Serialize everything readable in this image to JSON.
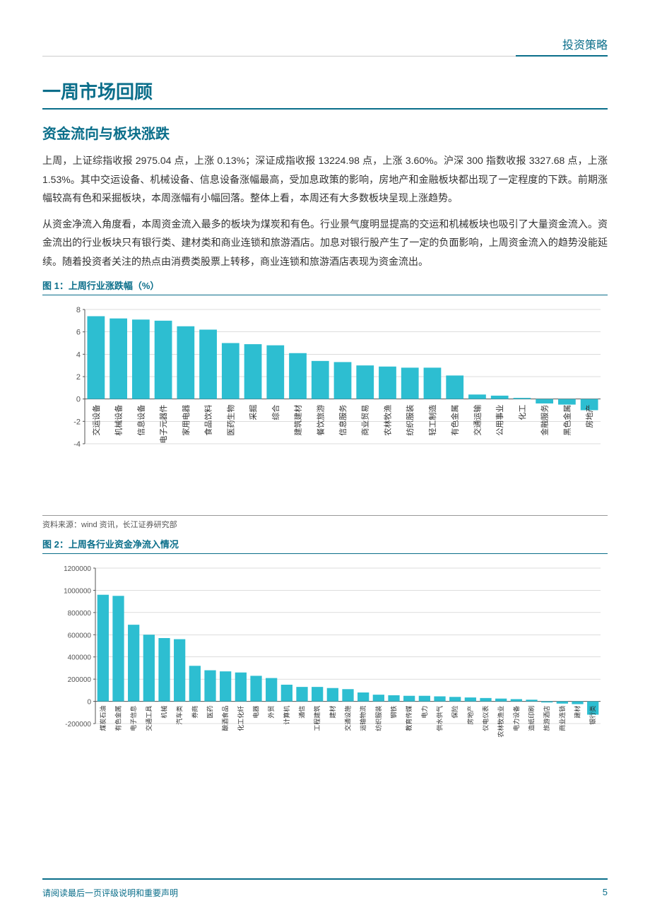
{
  "header": {
    "category": "投资策略"
  },
  "section": {
    "title": "一周市场回顾",
    "subtitle": "资金流向与板块涨跌",
    "para1": "上周，上证综指收报 2975.04 点，上涨 0.13%；深证成指收报 13224.98 点，上涨 3.60%。沪深 300 指数收报 3327.68 点，上涨 1.53%。其中交运设备、机械设备、信息设备涨幅最高，受加息政策的影响，房地产和金融板块都出现了一定程度的下跌。前期涨幅较高有色和采掘板块，本周涨幅有小幅回落。整体上看，本周还有大多数板块呈现上涨趋势。",
    "para2": "从资金净流入角度看，本周资金流入最多的板块为煤炭和有色。行业景气度明显提高的交运和机械板块也吸引了大量资金流入。资金流出的行业板块只有银行类、建材类和商业连锁和旅游酒店。加息对银行股产生了一定的负面影响，上周资金流入的趋势没能延续。随着投资者关注的热点由消费类股票上转移，商业连锁和旅游酒店表现为资金流出。"
  },
  "chart1": {
    "title": "图 1：上周行业涨跌幅（%）",
    "type": "bar",
    "ylim": [
      -4,
      8
    ],
    "yticks": [
      -4,
      -2,
      0,
      2,
      4,
      6,
      8
    ],
    "categories": [
      "交运设备",
      "机械设备",
      "信息设备",
      "电子元器件",
      "家用电器",
      "食品饮料",
      "医药生物",
      "采掘",
      "综合",
      "建筑建材",
      "餐饮旅游",
      "信息服务",
      "商业贸易",
      "农林牧渔",
      "纺织服装",
      "轻工制造",
      "有色金属",
      "交通运输",
      "公用事业",
      "化工",
      "金融服务",
      "黑色金属",
      "房地产"
    ],
    "values": [
      7.4,
      7.2,
      7.1,
      7.0,
      6.5,
      6.2,
      5.0,
      4.9,
      4.8,
      4.1,
      3.4,
      3.3,
      3.0,
      2.9,
      2.8,
      2.8,
      2.1,
      0.4,
      0.3,
      0.1,
      -0.4,
      -0.5,
      -1.0
    ],
    "bar_color": "#2dbed1",
    "grid_color": "#bbbbbb",
    "axis_color": "#555555",
    "source": "资料来源：wind 资讯，长江证券研究部"
  },
  "chart2": {
    "title": "图 2：上周各行业资金净流入情况",
    "type": "bar",
    "ylim": [
      -200000,
      1200000
    ],
    "yticks": [
      -200000,
      0,
      200000,
      400000,
      600000,
      800000,
      1000000,
      1200000
    ],
    "categories": [
      "煤炭石油",
      "有色金属",
      "电子信息",
      "交通工具",
      "机械",
      "汽车类",
      "券商",
      "医药",
      "酿酒食品",
      "化工化纤",
      "电器",
      "外贸",
      "计算机",
      "通信",
      "工程建筑",
      "建材",
      "交通设施",
      "运输物流",
      "纺织服装",
      "钢铁",
      "教育传媒",
      "电力",
      "供水供气",
      "保险",
      "房地产",
      "仪电仪表",
      "农林牧渔业",
      "电力设备",
      "造纸印刷",
      "旅游酒店",
      "商业连锁",
      "建材",
      "银行类"
    ],
    "values": [
      960000,
      950000,
      690000,
      600000,
      570000,
      560000,
      320000,
      280000,
      270000,
      260000,
      230000,
      210000,
      150000,
      130000,
      130000,
      120000,
      110000,
      80000,
      60000,
      55000,
      50000,
      50000,
      45000,
      40000,
      35000,
      30000,
      25000,
      20000,
      15000,
      -10000,
      -20000,
      -25000,
      -120000
    ],
    "bar_color": "#2dbed1",
    "grid_color": "#bbbbbb",
    "axis_color": "#555555"
  },
  "footer": {
    "text": "请阅读最后一页评级说明和重要声明",
    "page": "5"
  },
  "styling": {
    "title_color": "#0a6e8a",
    "text_color": "#333333",
    "background": "#ffffff"
  }
}
